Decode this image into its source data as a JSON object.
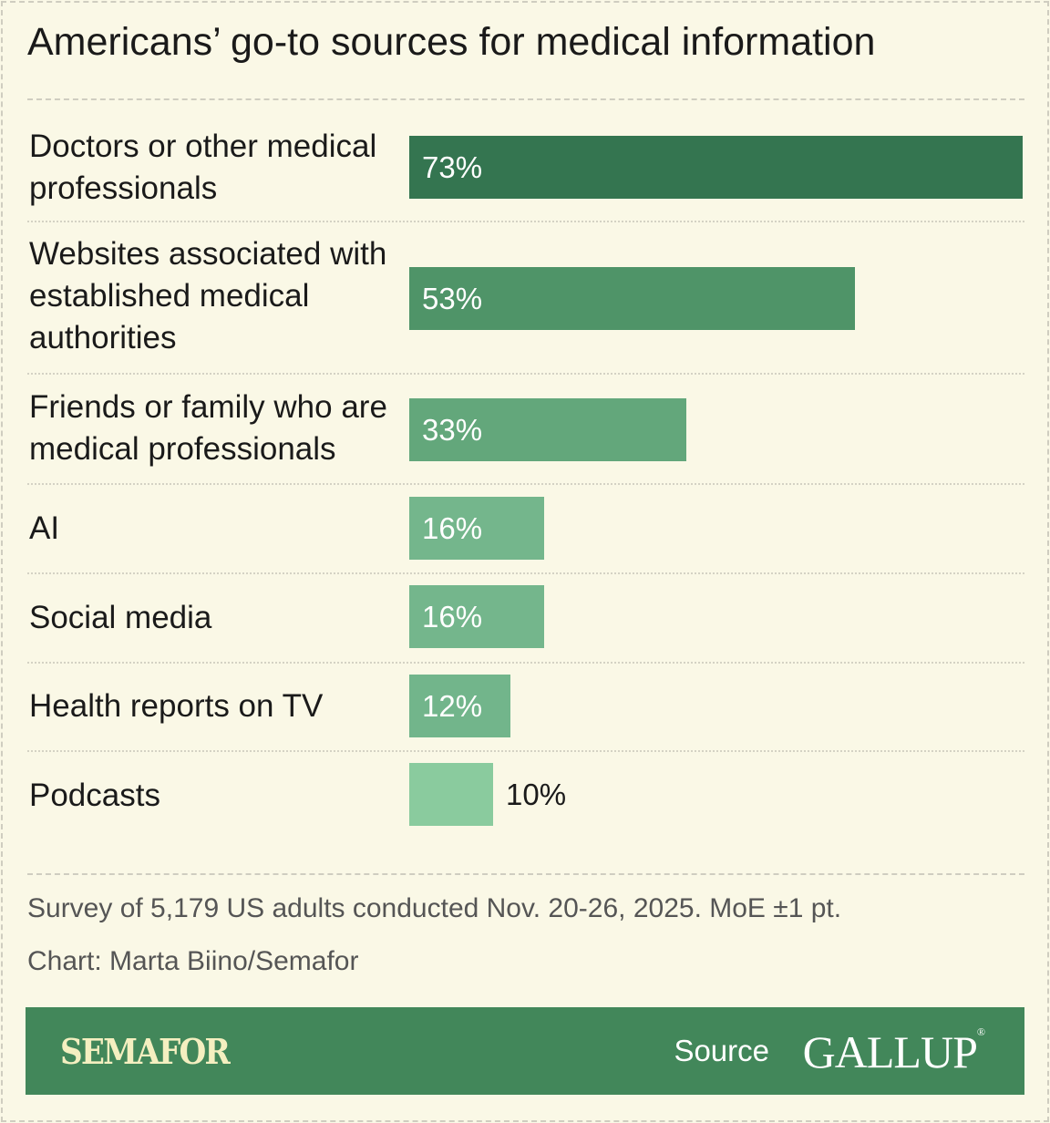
{
  "chart_data": {
    "type": "bar",
    "orientation": "horizontal",
    "title": "Americans’ go-to sources for medical information",
    "categories": [
      "Doctors or other medical professionals",
      "Websites associated with established medical authorities",
      "Friends or family who are medical professionals",
      "AI",
      "Social media",
      "Health reports on TV",
      "Podcasts"
    ],
    "values": [
      73,
      53,
      33,
      16,
      16,
      12,
      10
    ],
    "value_labels": [
      "73%",
      "53%",
      "33%",
      "16%",
      "16%",
      "12%",
      "10%"
    ],
    "colors": [
      "#347550",
      "#4f9468",
      "#63a77b",
      "#74b68c",
      "#74b68c",
      "#72b58b",
      "#8acb9e"
    ],
    "unit": "%",
    "xlim": [
      0,
      73
    ]
  },
  "footer": {
    "note": "Survey of 5,179 US adults conducted Nov. 20-26, 2025. MoE ±1 pt.",
    "credit": "Chart: Marta Biino/Semafor",
    "brand": "SEMAFOR",
    "source_label": "Source",
    "source_name": "GALLUP",
    "banner_color": "#42875a"
  }
}
